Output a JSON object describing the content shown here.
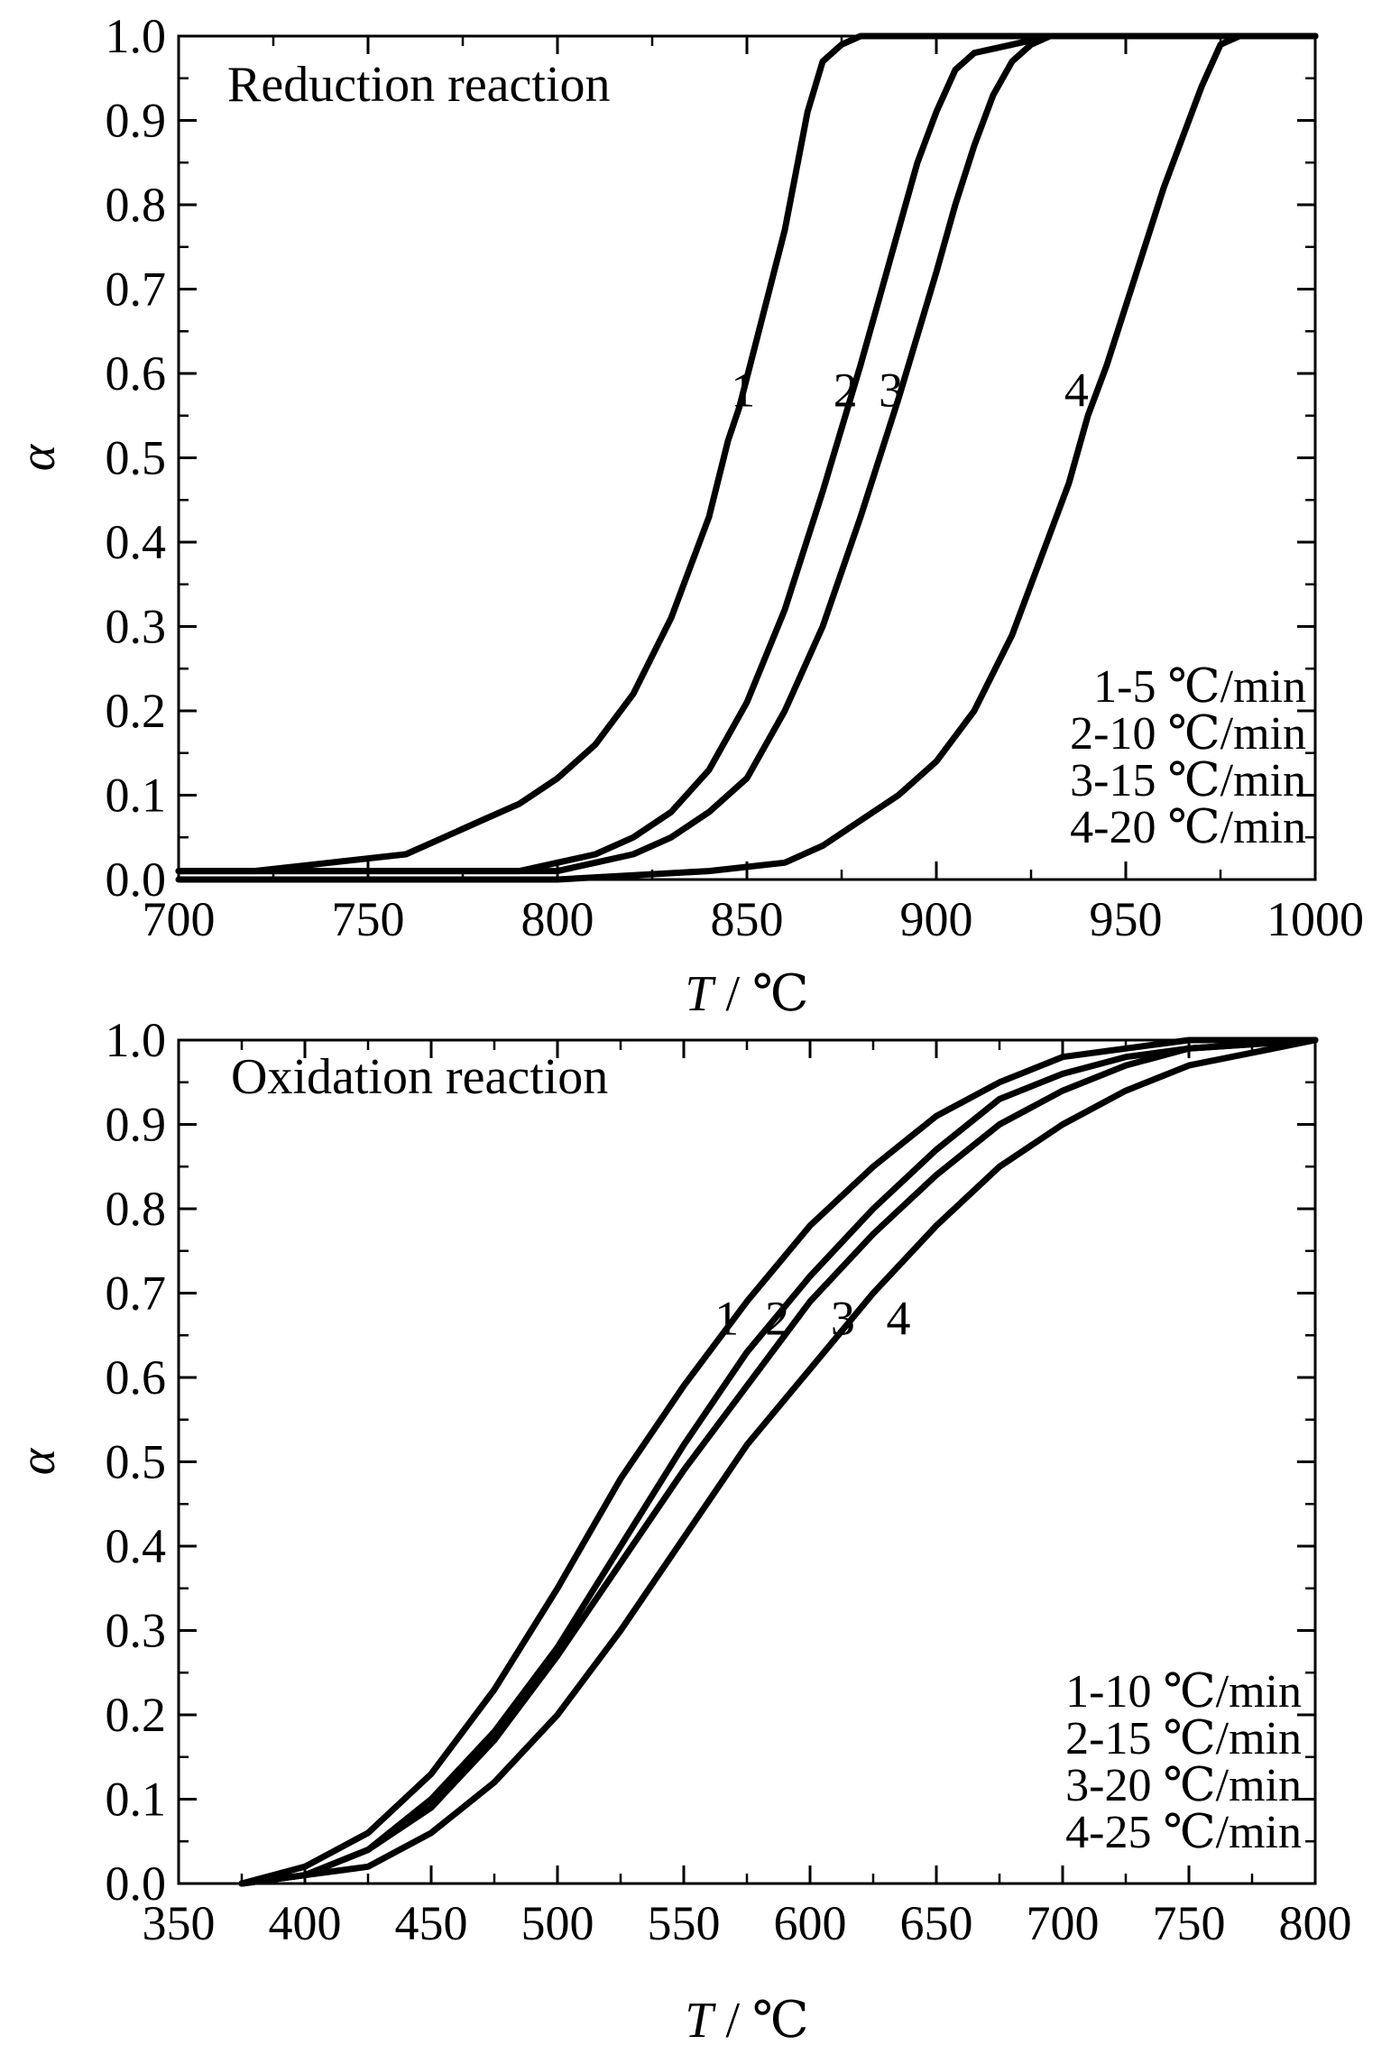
{
  "chart_data": [
    {
      "type": "line",
      "title": "Reduction reaction",
      "xlabel_var": "T",
      "xlabel_unit": "/ ℃",
      "ylabel": "α",
      "xlim": [
        700,
        1000
      ],
      "ylim": [
        0.0,
        1.0
      ],
      "xticks": [
        "700",
        "750",
        "800",
        "850",
        "900",
        "950",
        "1000"
      ],
      "yticks": [
        "0.0",
        "0.1",
        "0.2",
        "0.3",
        "0.4",
        "0.5",
        "0.6",
        "0.7",
        "0.8",
        "0.9",
        "1.0"
      ],
      "legend_position": "bottom-right",
      "legend": [
        "1-5 ℃/min",
        "2-10 ℃/min",
        "3-15 ℃/min",
        "4-20 ℃/min"
      ],
      "series": [
        {
          "name": "1",
          "label_at": [
            849,
            0.58
          ],
          "x": [
            700,
            720,
            740,
            760,
            770,
            780,
            790,
            800,
            810,
            820,
            830,
            840,
            845,
            848,
            852,
            856,
            860,
            863,
            866,
            870,
            875,
            880,
            1000
          ],
          "y": [
            0.01,
            0.01,
            0.02,
            0.03,
            0.05,
            0.07,
            0.09,
            0.12,
            0.16,
            0.22,
            0.31,
            0.43,
            0.52,
            0.56,
            0.63,
            0.7,
            0.77,
            0.84,
            0.91,
            0.97,
            0.99,
            1.0,
            1.0
          ]
        },
        {
          "name": "2",
          "label_at": [
            876,
            0.58
          ],
          "x": [
            700,
            760,
            790,
            800,
            810,
            820,
            830,
            840,
            850,
            860,
            870,
            880,
            885,
            890,
            895,
            900,
            905,
            910,
            920,
            930,
            1000
          ],
          "y": [
            0.01,
            0.01,
            0.01,
            0.02,
            0.03,
            0.05,
            0.08,
            0.13,
            0.21,
            0.32,
            0.46,
            0.61,
            0.69,
            0.77,
            0.85,
            0.91,
            0.96,
            0.98,
            0.99,
            1.0,
            1.0
          ]
        },
        {
          "name": "3",
          "label_at": [
            888,
            0.58
          ],
          "x": [
            700,
            780,
            800,
            810,
            820,
            830,
            840,
            850,
            860,
            870,
            880,
            890,
            900,
            905,
            910,
            915,
            920,
            925,
            930,
            1000
          ],
          "y": [
            0.01,
            0.01,
            0.01,
            0.02,
            0.03,
            0.05,
            0.08,
            0.12,
            0.2,
            0.3,
            0.43,
            0.57,
            0.72,
            0.8,
            0.87,
            0.93,
            0.97,
            0.99,
            1.0,
            1.0
          ]
        },
        {
          "name": "4",
          "label_at": [
            937,
            0.58
          ],
          "x": [
            700,
            800,
            840,
            860,
            870,
            880,
            890,
            900,
            910,
            920,
            930,
            935,
            940,
            945,
            950,
            955,
            960,
            965,
            970,
            975,
            980,
            1000
          ],
          "y": [
            0.0,
            0.0,
            0.01,
            0.02,
            0.04,
            0.07,
            0.1,
            0.14,
            0.2,
            0.29,
            0.41,
            0.47,
            0.55,
            0.61,
            0.68,
            0.75,
            0.82,
            0.88,
            0.94,
            0.99,
            1.0,
            1.0
          ]
        }
      ]
    },
    {
      "type": "line",
      "title": "Oxidation reaction",
      "xlabel_var": "T",
      "xlabel_unit": "/ ℃",
      "ylabel": "α",
      "xlim": [
        350,
        800
      ],
      "ylim": [
        0.0,
        1.0
      ],
      "xticks": [
        "350",
        "400",
        "450",
        "500",
        "550",
        "600",
        "650",
        "700",
        "750",
        "800"
      ],
      "yticks": [
        "0.0",
        "0.1",
        "0.2",
        "0.3",
        "0.4",
        "0.5",
        "0.6",
        "0.7",
        "0.8",
        "0.9",
        "1.0"
      ],
      "legend_position": "bottom-right",
      "legend": [
        "1-10 ℃/min",
        "2-15 ℃/min",
        "3-20 ℃/min",
        "4-25 ℃/min"
      ],
      "series": [
        {
          "name": "1",
          "label_at": [
            567,
            0.67
          ],
          "x": [
            375,
            400,
            425,
            450,
            475,
            500,
            525,
            550,
            575,
            600,
            625,
            650,
            675,
            700,
            725,
            750,
            800
          ],
          "y": [
            0.0,
            0.02,
            0.06,
            0.13,
            0.23,
            0.35,
            0.48,
            0.59,
            0.69,
            0.78,
            0.85,
            0.91,
            0.95,
            0.98,
            0.99,
            1.0,
            1.0
          ]
        },
        {
          "name": "2",
          "label_at": [
            587,
            0.67
          ],
          "x": [
            375,
            400,
            425,
            450,
            475,
            500,
            525,
            550,
            575,
            600,
            625,
            650,
            675,
            700,
            725,
            750,
            800
          ],
          "y": [
            0.0,
            0.01,
            0.04,
            0.1,
            0.18,
            0.28,
            0.4,
            0.52,
            0.63,
            0.72,
            0.8,
            0.87,
            0.93,
            0.96,
            0.98,
            0.99,
            1.0
          ]
        },
        {
          "name": "3",
          "label_at": [
            613,
            0.67
          ],
          "x": [
            375,
            400,
            425,
            450,
            475,
            500,
            525,
            550,
            575,
            600,
            625,
            650,
            675,
            700,
            725,
            750,
            800
          ],
          "y": [
            0.0,
            0.01,
            0.04,
            0.09,
            0.17,
            0.27,
            0.38,
            0.49,
            0.59,
            0.69,
            0.77,
            0.84,
            0.9,
            0.94,
            0.97,
            0.99,
            1.0
          ]
        },
        {
          "name": "4",
          "label_at": [
            635,
            0.67
          ],
          "x": [
            375,
            400,
            425,
            450,
            475,
            500,
            525,
            550,
            575,
            600,
            625,
            650,
            675,
            700,
            725,
            750,
            800
          ],
          "y": [
            0.0,
            0.01,
            0.02,
            0.06,
            0.12,
            0.2,
            0.3,
            0.41,
            0.52,
            0.61,
            0.7,
            0.78,
            0.85,
            0.9,
            0.94,
            0.97,
            1.0
          ]
        }
      ]
    }
  ]
}
